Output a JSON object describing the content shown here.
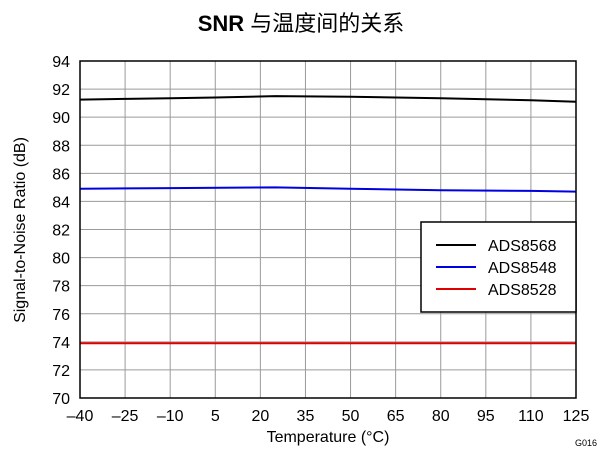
{
  "title_bold": "SNR",
  "title_rest": " 与温度间的关系",
  "figure_id": "G016",
  "chart_data": {
    "type": "line",
    "xlabel": "Temperature (°C)",
    "ylabel": "Signal-to-Noise Ratio (dB)",
    "xlim": [
      -40,
      125
    ],
    "ylim": [
      70,
      94
    ],
    "xticks": [
      -40,
      -25,
      -10,
      5,
      20,
      35,
      50,
      65,
      80,
      95,
      110,
      125
    ],
    "xtick_labels": [
      "–40",
      "–25",
      "–10",
      "5",
      "20",
      "35",
      "50",
      "65",
      "80",
      "95",
      "110",
      "125"
    ],
    "yticks": [
      70,
      72,
      74,
      76,
      78,
      80,
      82,
      84,
      86,
      88,
      90,
      92,
      94
    ],
    "grid": true,
    "legend_position": "right",
    "series": [
      {
        "name": "ADS8568",
        "color": "#000000",
        "x": [
          -40,
          -25,
          -10,
          5,
          25,
          50,
          80,
          110,
          125
        ],
        "y": [
          91.25,
          91.3,
          91.35,
          91.4,
          91.5,
          91.45,
          91.35,
          91.2,
          91.1
        ]
      },
      {
        "name": "ADS8548",
        "color": "#0000e0",
        "x": [
          -40,
          -10,
          25,
          50,
          80,
          110,
          125
        ],
        "y": [
          84.9,
          84.95,
          85.0,
          84.9,
          84.8,
          84.75,
          84.7
        ]
      },
      {
        "name": "ADS8528",
        "color": "#e00000",
        "x": [
          -40,
          0,
          25,
          60,
          100,
          125
        ],
        "y": [
          73.9,
          73.9,
          73.9,
          73.9,
          73.9,
          73.9
        ]
      }
    ]
  }
}
